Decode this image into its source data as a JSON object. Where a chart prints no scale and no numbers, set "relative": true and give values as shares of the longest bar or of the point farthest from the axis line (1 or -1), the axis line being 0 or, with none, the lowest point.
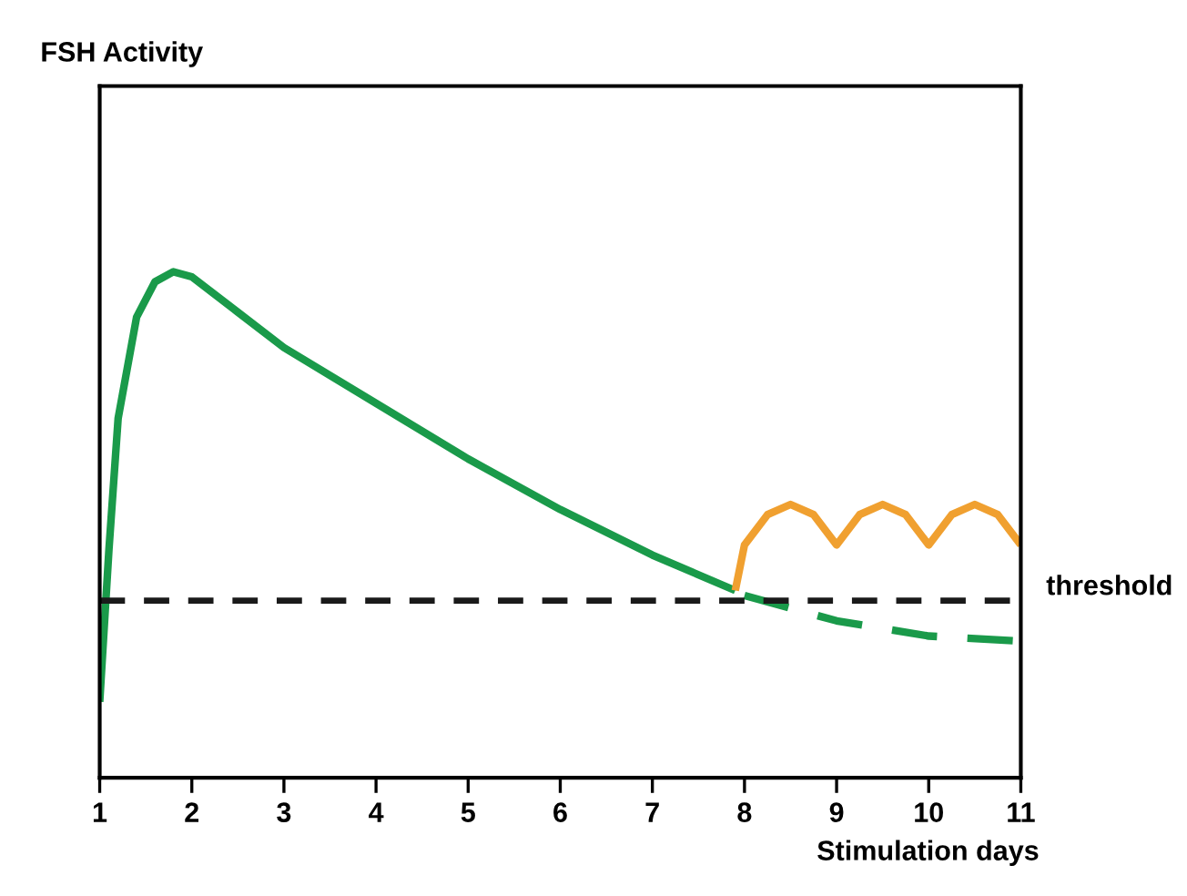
{
  "chart_data": {
    "type": "line",
    "relative": true,
    "annotations": [
      "FSH Activity"
    ],
    "xlabel": "Stimulation days",
    "xlim": [
      1,
      11
    ],
    "xticks": [
      1,
      2,
      3,
      4,
      5,
      6,
      7,
      8,
      9,
      10,
      11
    ],
    "grid": false,
    "legend": false,
    "tick_labels": "x",
    "marker": "none",
    "series": [
      {
        "color": "#1a9a4a",
        "line_style": "solid",
        "x": [
          1,
          1.1,
          1.2,
          1.4,
          1.6,
          1.8,
          2,
          2.5,
          3,
          4,
          5,
          6,
          7,
          7.9
        ],
        "values": [
          0.15,
          0.45,
          0.71,
          0.91,
          0.98,
          1.0,
          0.99,
          0.92,
          0.85,
          0.74,
          0.63,
          0.53,
          0.44,
          0.37
        ]
      },
      {
        "color": "#1a9a4a",
        "line_style": "dashed",
        "x": [
          8,
          9,
          10,
          11
        ],
        "values": [
          0.36,
          0.31,
          0.28,
          0.27
        ]
      },
      {
        "color": "#f0a030",
        "line_style": "solid",
        "x": [
          7.9,
          8,
          8.25,
          8.5,
          8.75,
          9,
          9.25,
          9.5,
          9.75,
          10,
          10.25,
          10.5,
          10.75,
          11
        ],
        "values": [
          0.37,
          0.46,
          0.52,
          0.54,
          0.52,
          0.46,
          0.52,
          0.54,
          0.52,
          0.46,
          0.52,
          0.54,
          0.52,
          0.46
        ]
      }
    ],
    "ref_lines": [
      {
        "axis": "y",
        "value": 0.35,
        "label": "threshold",
        "color": "#1a1a1a",
        "line_style": "dashed"
      }
    ]
  }
}
